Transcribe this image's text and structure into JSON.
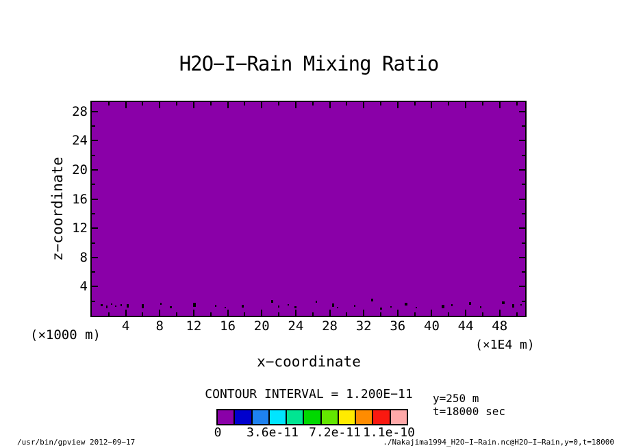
{
  "chart_data": {
    "type": "heatmap",
    "title": "H2O−I−Rain Mixing Ratio",
    "xlabel": "x−coordinate",
    "ylabel": "z−coordinate",
    "x_unit_note": "(×1E4 m)",
    "y_unit_note": "(×1000 m)",
    "x_ticks": [
      4,
      8,
      12,
      16,
      20,
      24,
      28,
      32,
      36,
      40,
      44,
      48
    ],
    "y_ticks": [
      4,
      8,
      12,
      16,
      20,
      24,
      28
    ],
    "minor_tick_step": 2,
    "xlim": [
      0,
      51
    ],
    "ylim": [
      0,
      29.3
    ],
    "grid": false,
    "contour_interval": 1.2e-11,
    "colorbar_tick_labels": [
      "0",
      "3.6e-11",
      "7.2e-11",
      "1.1e-10"
    ],
    "colorbar_colors": [
      "#8A00A8",
      "#0000CD",
      "#1E82F0",
      "#00E5FF",
      "#00E592",
      "#00D900",
      "#63E600",
      "#FFEB00",
      "#FF8C00",
      "#FA1910",
      "#FFA8A8"
    ],
    "field_fill_color": "#8A00A8",
    "field_summary": "Mixing ratio is in the lowest color bin (~0, purple) over the entire domain; only scattered tiny near-surface contour specks appear along the bottom of the plot.",
    "surface_specks": [
      [
        1.2,
        1.5,
        3,
        3
      ],
      [
        1.8,
        1.2,
        2,
        4
      ],
      [
        2.3,
        1.6,
        2,
        2
      ],
      [
        2.8,
        1.3,
        2,
        2
      ],
      [
        3.5,
        1.5,
        2,
        3
      ],
      [
        4.2,
        1.4,
        3,
        5
      ],
      [
        6.0,
        1.3,
        3,
        6
      ],
      [
        8.1,
        1.6,
        2,
        3
      ],
      [
        9.3,
        1.2,
        3,
        3
      ],
      [
        12.1,
        1.5,
        4,
        6
      ],
      [
        14.6,
        1.4,
        2,
        3
      ],
      [
        15.7,
        1.1,
        2,
        2
      ],
      [
        17.8,
        1.3,
        3,
        4
      ],
      [
        21.2,
        2.0,
        3,
        4
      ],
      [
        22.0,
        1.3,
        2,
        3
      ],
      [
        23.1,
        1.5,
        2,
        2
      ],
      [
        24.0,
        1.2,
        3,
        3
      ],
      [
        26.4,
        1.9,
        2,
        3
      ],
      [
        28.4,
        1.5,
        3,
        5
      ],
      [
        28.9,
        1.1,
        2,
        2
      ],
      [
        30.9,
        1.4,
        2,
        3
      ],
      [
        33.0,
        2.2,
        3,
        4
      ],
      [
        34.0,
        1.0,
        3,
        3
      ],
      [
        35.2,
        1.2,
        2,
        2
      ],
      [
        37.0,
        1.6,
        4,
        4
      ],
      [
        38.2,
        1.1,
        2,
        2
      ],
      [
        41.3,
        1.3,
        4,
        5
      ],
      [
        42.4,
        1.5,
        2,
        3
      ],
      [
        44.5,
        1.7,
        3,
        4
      ],
      [
        45.8,
        1.2,
        2,
        3
      ],
      [
        48.4,
        1.8,
        4,
        4
      ],
      [
        49.6,
        1.4,
        3,
        5
      ],
      [
        50.5,
        1.5,
        2,
        2
      ]
    ]
  },
  "legend": {
    "contour_interval_text": "CONTOUR INTERVAL = 1.200E−11",
    "slice_y": "y=250 m",
    "slice_t": "t=18000 sec"
  },
  "footer": {
    "left": "/usr/bin/gpview  2012−09−17",
    "right": "./Nakajima1994_H2O−I−Rain.nc@H2O−I−Rain,y=0,t=18000"
  }
}
